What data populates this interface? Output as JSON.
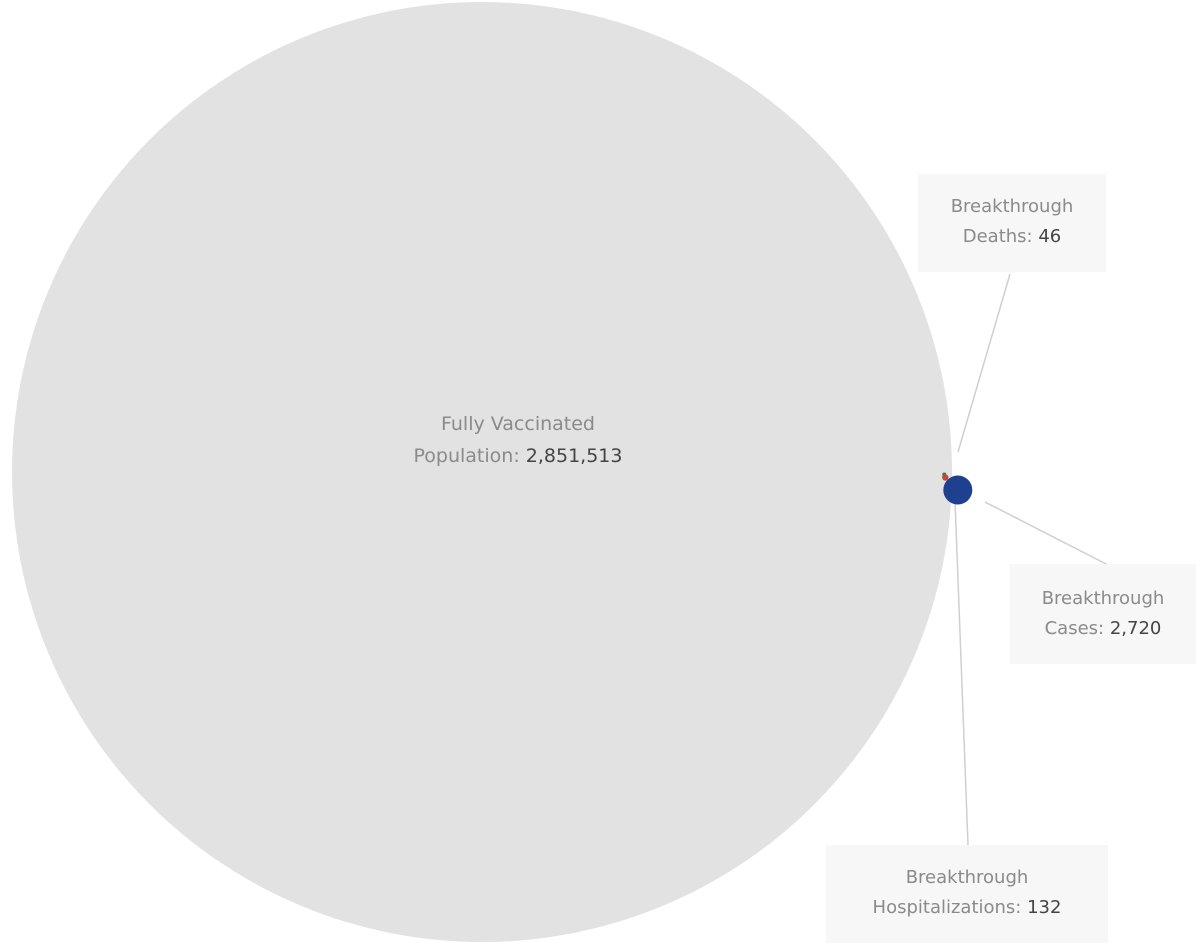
{
  "chart_data": {
    "type": "bubble",
    "title": "",
    "colors": {
      "population": "#e2e2e2",
      "cases": "#1f3f8f",
      "hospitalizations": "#c04a3a",
      "deaths": "#2e7d4f",
      "leader": "#cfcfcf",
      "callout_bg": "#f7f7f7"
    },
    "items": [
      {
        "key": "population",
        "label_line1": "Fully Vaccinated",
        "label_line2": "Population:",
        "value": 2851513,
        "value_text": "2,851,513"
      },
      {
        "key": "cases",
        "label_line1": "Breakthrough",
        "label_line2": "Cases:",
        "value": 2720,
        "value_text": "2,720"
      },
      {
        "key": "hospitalizations",
        "label_line1": "Breakthrough",
        "label_line2": "Hospitalizations:",
        "value": 132,
        "value_text": "132"
      },
      {
        "key": "deaths",
        "label_line1": "Breakthrough",
        "label_line2": "Deaths:",
        "value": 46,
        "value_text": "46"
      }
    ]
  }
}
